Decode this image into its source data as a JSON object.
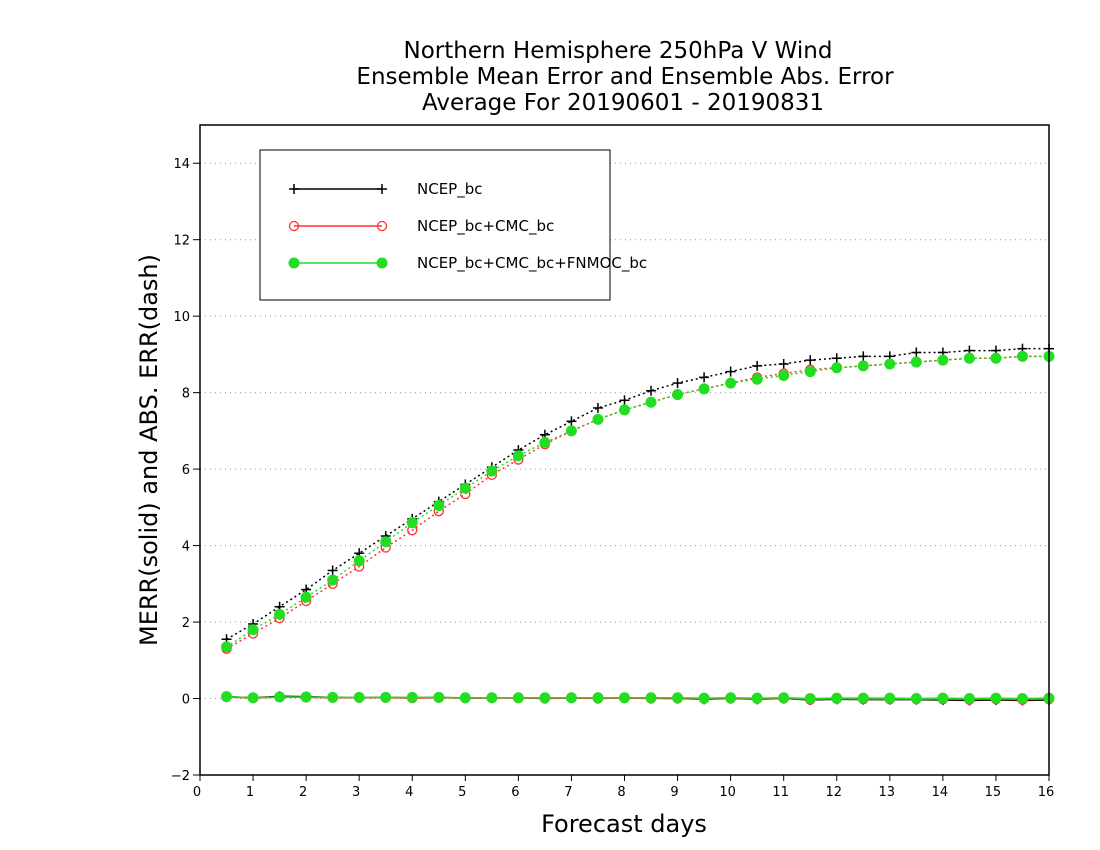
{
  "chart_data": {
    "type": "line",
    "title_lines": [
      "Northern Hemisphere 250hPa V Wind",
      "Ensemble Mean Error and Ensemble Abs. Error",
      "Average For 20190601 - 20190831"
    ],
    "xlabel": "Forecast days",
    "ylabel": "MERR(solid) and ABS. ERR(dash)",
    "xlim": [
      0,
      16
    ],
    "ylim": [
      -2,
      15
    ],
    "xticks": [
      0,
      1,
      2,
      3,
      4,
      5,
      6,
      7,
      8,
      9,
      10,
      11,
      12,
      13,
      14,
      15,
      16
    ],
    "yticks": [
      -2,
      0,
      2,
      4,
      6,
      8,
      10,
      12,
      14
    ],
    "grid": "horizontal dotted",
    "legend_position": "top-left",
    "x": [
      0.5,
      1,
      1.5,
      2,
      2.5,
      3,
      3.5,
      4,
      4.5,
      5,
      5.5,
      6,
      6.5,
      7,
      7.5,
      8,
      8.5,
      9,
      9.5,
      10,
      10.5,
      11,
      11.5,
      12,
      12.5,
      13,
      13.5,
      14,
      14.5,
      15,
      15.5,
      16
    ],
    "series": [
      {
        "name": "NCEP_bc",
        "color": "#000000",
        "marker": "plus",
        "merr": [
          0.05,
          0.02,
          0.06,
          0.05,
          0.03,
          0.02,
          0.03,
          0.02,
          0.03,
          0.01,
          0.02,
          0.02,
          0.01,
          0.02,
          0.01,
          0.02,
          0.01,
          0.0,
          -0.02,
          0.0,
          -0.02,
          0.0,
          -0.04,
          -0.02,
          -0.03,
          -0.03,
          -0.03,
          -0.04,
          -0.05,
          -0.04,
          -0.05,
          -0.04
        ],
        "abs_err": [
          1.55,
          1.95,
          2.4,
          2.85,
          3.35,
          3.8,
          4.25,
          4.7,
          5.15,
          5.6,
          6.05,
          6.5,
          6.9,
          7.25,
          7.6,
          7.8,
          8.05,
          8.25,
          8.4,
          8.55,
          8.7,
          8.75,
          8.85,
          8.9,
          8.95,
          8.95,
          9.05,
          9.05,
          9.1,
          9.1,
          9.15,
          9.15
        ]
      },
      {
        "name": "NCEP_bc+CMC_bc",
        "color": "#ff3030",
        "marker": "open-circle",
        "merr": [
          0.04,
          0.01,
          0.04,
          0.03,
          0.02,
          0.02,
          0.02,
          0.01,
          0.02,
          0.01,
          0.01,
          0.01,
          0.0,
          0.01,
          0.0,
          0.01,
          0.0,
          0.0,
          -0.01,
          0.0,
          -0.01,
          0.0,
          -0.03,
          -0.01,
          -0.02,
          -0.02,
          -0.02,
          -0.02,
          -0.03,
          -0.02,
          -0.03,
          -0.02
        ],
        "abs_err": [
          1.3,
          1.7,
          2.1,
          2.55,
          3.0,
          3.45,
          3.95,
          4.4,
          4.9,
          5.35,
          5.85,
          6.25,
          6.65,
          7.0,
          7.3,
          7.55,
          7.75,
          7.95,
          8.1,
          8.25,
          8.4,
          8.5,
          8.6,
          8.65,
          8.7,
          8.75,
          8.8,
          8.85,
          8.9,
          8.9,
          8.95,
          8.95
        ]
      },
      {
        "name": "NCEP_bc+CMC_bc+FNMOC_bc",
        "color": "#22dd22",
        "marker": "filled-circle",
        "merr": [
          0.05,
          0.02,
          0.04,
          0.04,
          0.03,
          0.03,
          0.03,
          0.03,
          0.03,
          0.02,
          0.02,
          0.02,
          0.02,
          0.02,
          0.02,
          0.02,
          0.02,
          0.02,
          0.01,
          0.02,
          0.01,
          0.02,
          0.0,
          0.01,
          0.01,
          0.01,
          0.0,
          0.01,
          0.0,
          0.01,
          0.0,
          0.01
        ],
        "abs_err": [
          1.35,
          1.8,
          2.2,
          2.65,
          3.1,
          3.6,
          4.1,
          4.6,
          5.05,
          5.5,
          5.95,
          6.35,
          6.7,
          7.0,
          7.3,
          7.55,
          7.75,
          7.95,
          8.1,
          8.25,
          8.35,
          8.45,
          8.55,
          8.65,
          8.7,
          8.75,
          8.8,
          8.85,
          8.9,
          8.9,
          8.95,
          8.95
        ]
      }
    ]
  }
}
